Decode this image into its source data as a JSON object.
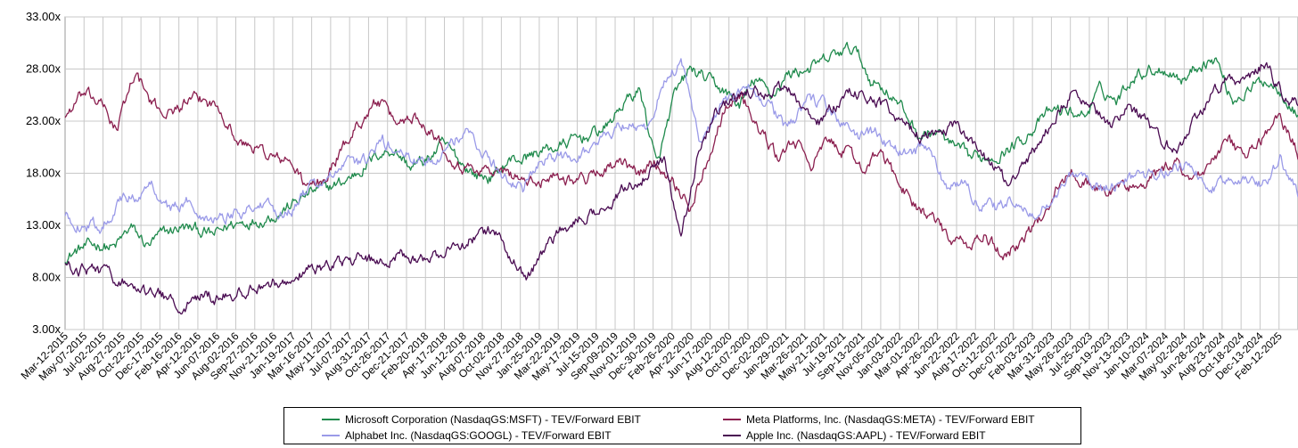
{
  "chart_data": {
    "type": "line",
    "title": "",
    "xlabel": "",
    "ylabel": "",
    "ylim": [
      3,
      33
    ],
    "y_tick_labels": [
      "3.00x",
      "8.00x",
      "13.00x",
      "18.00x",
      "23.00x",
      "28.00x",
      "33.00x"
    ],
    "y_tick_values": [
      3,
      8,
      13,
      18,
      23,
      28,
      33
    ],
    "x_tick_labels": [
      "Mar-12-2015",
      "May-07-2015",
      "Jul-02-2015",
      "Aug-27-2015",
      "Oct-22-2015",
      "Dec-17-2015",
      "Feb-16-2016",
      "Apr-12-2016",
      "Jun-07-2016",
      "Aug-02-2016",
      "Sep-27-2016",
      "Nov-21-2016",
      "Jan-19-2017",
      "Mar-16-2017",
      "May-11-2017",
      "Jul-07-2017",
      "Aug-31-2017",
      "Oct-26-2017",
      "Dec-21-2017",
      "Feb-20-2018",
      "Apr-17-2018",
      "Jun-12-2018",
      "Aug-07-2018",
      "Oct-02-2018",
      "Nov-27-2018",
      "Jan-25-2019",
      "Mar-22-2019",
      "May-17-2019",
      "Jul-15-2019",
      "Sep-09-2019",
      "Nov-01-2019",
      "Dec-30-2019",
      "Feb-26-2020",
      "Apr-22-2020",
      "Jun-17-2020",
      "Aug-12-2020",
      "Oct-07-2020",
      "Dec-02-2020",
      "Jan-29-2021",
      "Mar-26-2021",
      "May-21-2021",
      "Jul-19-2021",
      "Sep-13-2021",
      "Nov-05-2021",
      "Jan-03-2022",
      "Mar-01-2022",
      "Apr-26-2022",
      "Jun-22-2022",
      "Aug-17-2022",
      "Oct-12-2022",
      "Dec-07-2022",
      "Feb-03-2023",
      "Mar-31-2023",
      "May-26-2023",
      "Jul-25-2023",
      "Sep-19-2023",
      "Nov-13-2023",
      "Jan-10-2024",
      "Mar-07-2024",
      "May-02-2024",
      "Jun-28-2024",
      "Aug-23-2024",
      "Oct-18-2024",
      "Dec-13-2024",
      "Feb-12-2025"
    ],
    "grid": true,
    "legend_placement": "bottom",
    "series": [
      {
        "name": "Microsoft Corporation (NasdaqGS:MSFT) - TEV/Forward EBIT",
        "color": "#1f8a4c",
        "values": [
          9.9,
          10.8,
          11.2,
          10.8,
          12.8,
          11.0,
          12.2,
          12.8,
          12.6,
          12.0,
          13.0,
          13.4,
          13.6,
          14.2,
          15.2,
          16.2,
          16.6,
          17.2,
          18.4,
          19.8,
          20.3,
          18.6,
          19.2,
          20.8,
          19.2,
          17.8,
          17.6,
          19.2,
          19.5,
          20.2,
          20.5,
          21.2,
          21.7,
          22.5,
          24.8,
          26.0,
          18.5,
          25.0,
          28.0,
          27.0,
          26.0,
          24.5,
          27.0,
          25.5,
          27.5,
          28.0,
          28.5,
          29.5,
          30.0,
          27.0,
          26.0,
          24.0,
          21.5,
          22.0,
          20.5,
          19.5,
          19.5,
          20.0,
          21.0,
          22.5,
          24.0,
          24.0,
          23.5,
          26.0,
          25.0,
          27.5,
          28.0,
          28.0,
          27.0,
          28.5,
          29.0,
          25.0,
          26.0,
          27.0,
          26.0,
          23.5
        ]
      },
      {
        "name": "Meta Platforms, Inc. (NasdaqGS:META) - TEV/Forward EBIT",
        "color": "#8b1f4f",
        "values": [
          23.5,
          25.5,
          24.8,
          22.2,
          27.8,
          24.5,
          23.8,
          24.8,
          25.0,
          24.2,
          20.8,
          20.5,
          19.5,
          19.0,
          16.5,
          17.5,
          20.5,
          23.0,
          25.0,
          22.8,
          23.5,
          22.5,
          20.0,
          18.5,
          18.5,
          18.0,
          17.8,
          16.8,
          18.0,
          17.5,
          17.5,
          18.5,
          18.8,
          18.0,
          19.0,
          17.5,
          14.5,
          19.5,
          24.5,
          25.5,
          22.0,
          19.5,
          21.0,
          19.0,
          21.0,
          20.0,
          18.5,
          20.0,
          17.0,
          15.0,
          13.5,
          11.5,
          11.0,
          12.0,
          10.0,
          11.5,
          13.0,
          16.5,
          18.0,
          17.0,
          16.0,
          17.0,
          16.5,
          18.0,
          19.0,
          17.5,
          19.0,
          21.0,
          19.5,
          21.5,
          23.5,
          20.0
        ]
      },
      {
        "name": "Alphabet Inc. (NasdaqGS:GOOGL) - TEV/Forward EBIT",
        "color": "#9a9ae8",
        "values": [
          13.8,
          13.0,
          12.8,
          15.2,
          15.8,
          16.8,
          14.5,
          15.2,
          14.0,
          13.8,
          14.5,
          15.0,
          14.2,
          14.8,
          16.8,
          17.5,
          18.8,
          19.0,
          21.0,
          20.0,
          19.0,
          19.5,
          21.0,
          22.0,
          19.5,
          17.5,
          16.5,
          19.0,
          19.5,
          19.8,
          20.5,
          22.0,
          23.0,
          22.0,
          27.0,
          28.5,
          21.0,
          24.0,
          25.0,
          26.5,
          24.5,
          22.0,
          25.0,
          24.5,
          23.0,
          21.5,
          22.0,
          20.0,
          20.0,
          20.5,
          16.5,
          17.0,
          15.0,
          14.5,
          15.5,
          13.5,
          15.5,
          17.5,
          17.5,
          16.5,
          17.0,
          18.0,
          17.5,
          19.0,
          18.5,
          16.5,
          17.0,
          18.0,
          17.0,
          19.5,
          15.8
        ]
      },
      {
        "name": "Apple Inc. (NasdaqGS:AAPL) - TEV/Forward EBIT",
        "color": "#4a0c52",
        "values": [
          9.0,
          8.8,
          8.5,
          8.0,
          7.0,
          6.5,
          6.0,
          5.5,
          6.2,
          6.0,
          6.5,
          7.0,
          7.5,
          7.8,
          8.5,
          9.0,
          9.5,
          9.8,
          9.5,
          9.8,
          10.2,
          9.8,
          10.5,
          11.0,
          12.0,
          12.5,
          10.0,
          8.0,
          10.5,
          12.5,
          13.5,
          14.5,
          15.5,
          17.0,
          18.0,
          19.0,
          12.0,
          20.0,
          24.0,
          25.0,
          26.0,
          25.5,
          26.5,
          24.5,
          23.0,
          24.5,
          26.0,
          25.5,
          24.0,
          22.5,
          21.5,
          22.0,
          22.5,
          20.5,
          19.0,
          17.0,
          18.5,
          21.5,
          24.0,
          26.0,
          24.0,
          22.5,
          24.5,
          23.0,
          21.0,
          20.5,
          23.0,
          26.0,
          27.0,
          26.5,
          28.5,
          26.0,
          24.5
        ]
      }
    ]
  }
}
